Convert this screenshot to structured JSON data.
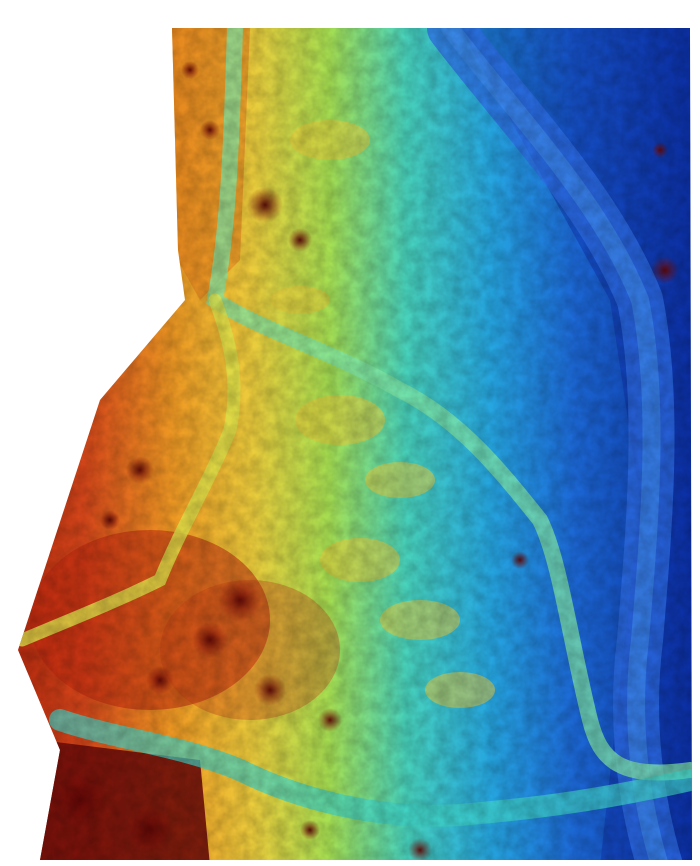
{
  "map": {
    "kind": "elevation-dem-orthomosaic",
    "colormap": [
      "#7a0a0a",
      "#c83a14",
      "#f08a1e",
      "#f2d23a",
      "#b9e34a",
      "#46d6b8",
      "#21a8e0",
      "#1d64d8",
      "#0b2a9a"
    ],
    "background": "#ffffff",
    "features": [
      "stream-channel-west",
      "stream-channel-north",
      "stream-channel-south",
      "main-channel-east",
      "vegetation-clusters"
    ]
  }
}
